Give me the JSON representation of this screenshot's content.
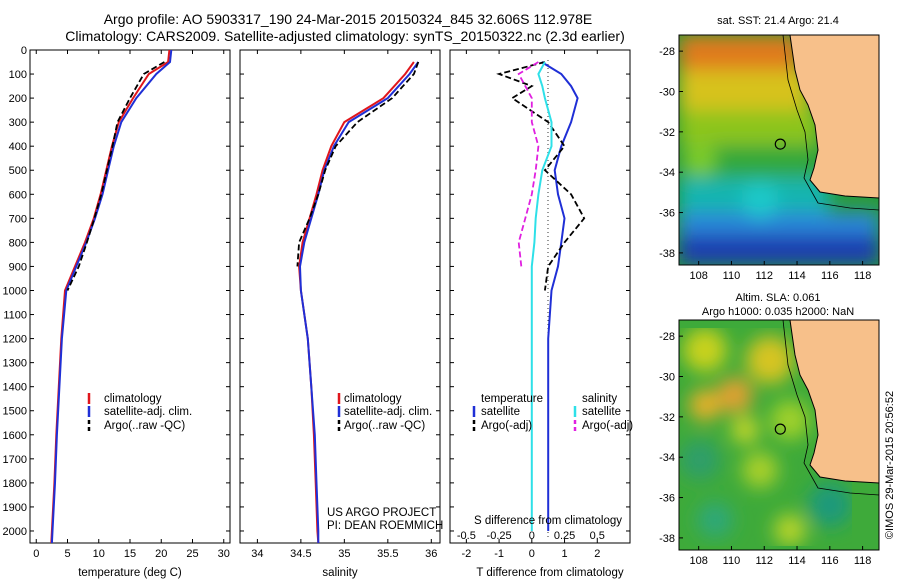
{
  "header": {
    "title_line1": "Argo profile: AO 5903317_190 24-Mar-2015 20150324_845 32.606S 112.978E",
    "title_line2": "Climatology: CARS2009. Satellite-adjusted climatology: synTS_20150322.nc (2.3d earlier)"
  },
  "colors": {
    "climatology": "#e0161c",
    "satellite": "#1f2fd6",
    "argo": "#000000",
    "salinity_satellite": "#2ee0e8",
    "salinity_argo": "#e020e0",
    "land": "#f7c08a"
  },
  "chart_data": [
    {
      "type": "line",
      "panel": "temperature",
      "xlabel": "temperature (deg C)",
      "xlim": [
        -1,
        31
      ],
      "xticks": [
        "0",
        "5",
        "10",
        "15",
        "20",
        "25",
        "30"
      ],
      "ylim": [
        2050,
        0
      ],
      "yticks": [
        "0",
        "100",
        "200",
        "300",
        "400",
        "500",
        "600",
        "700",
        "800",
        "900",
        "1000",
        "1100",
        "1200",
        "1300",
        "1400",
        "1500",
        "1600",
        "1700",
        "1800",
        "1900",
        "2000"
      ],
      "legend": [
        "climatology",
        "satellite-adj. clim.",
        "Argo(..raw -QC)"
      ],
      "depth": [
        0,
        50,
        100,
        200,
        300,
        400,
        500,
        600,
        700,
        800,
        900,
        1000,
        1200,
        1400,
        1600,
        1800,
        2000,
        2050
      ],
      "series": [
        {
          "name": "climatology",
          "values": [
            21.3,
            21.1,
            18.0,
            15.5,
            13.2,
            12.1,
            11.2,
            10.3,
            9.2,
            7.8,
            6.2,
            4.6,
            4.0,
            3.6,
            3.2,
            2.9,
            2.5,
            2.4
          ]
        },
        {
          "name": "satellite-adj. clim.",
          "values": [
            21.6,
            21.4,
            19.2,
            16.0,
            13.6,
            12.4,
            11.5,
            10.6,
            9.4,
            8.0,
            6.4,
            4.8,
            4.1,
            3.7,
            3.3,
            3.0,
            2.6,
            2.5
          ]
        },
        {
          "name": "Argo(..raw -QC)",
          "values": [
            null,
            20.5,
            17.2,
            15.0,
            13.0,
            12.2,
            11.3,
            10.4,
            9.3,
            8.1,
            6.8,
            5.0,
            null,
            null,
            null,
            null,
            null,
            null
          ]
        }
      ]
    },
    {
      "type": "line",
      "panel": "salinity",
      "xlabel": "salinity",
      "xlim": [
        33.8,
        36.1
      ],
      "xticks": [
        "34",
        "34.5",
        "35",
        "35.5",
        "36"
      ],
      "legend": [
        "climatology",
        "satellite-adj. clim.",
        "Argo(..raw -QC)"
      ],
      "annotation": [
        "US ARGO PROJECT",
        "PI: DEAN ROEMMICH"
      ],
      "depth": [
        50,
        100,
        200,
        300,
        400,
        500,
        600,
        700,
        800,
        900,
        1000,
        1200,
        1400,
        1600,
        1800,
        2000,
        2050
      ],
      "series": [
        {
          "name": "climatology",
          "values": [
            35.8,
            35.7,
            35.45,
            35.0,
            34.85,
            34.75,
            34.68,
            34.6,
            34.52,
            34.48,
            34.5,
            34.58,
            34.62,
            34.65,
            34.67,
            34.69,
            34.7
          ]
        },
        {
          "name": "satellite-adj. clim.",
          "values": [
            35.85,
            35.75,
            35.5,
            35.05,
            34.88,
            34.77,
            34.7,
            34.62,
            34.54,
            34.49,
            34.5,
            34.58,
            34.62,
            34.66,
            34.68,
            34.7,
            34.7
          ]
        },
        {
          "name": "Argo(..raw -QC)",
          "values": [
            35.85,
            35.8,
            35.55,
            35.15,
            34.9,
            34.78,
            34.7,
            34.6,
            34.48,
            34.46,
            null,
            null,
            null,
            null,
            null,
            null,
            null
          ]
        }
      ]
    },
    {
      "type": "line",
      "panel": "difference",
      "xlabel": "T difference from climatology",
      "top_axis_label": "S difference from climatology",
      "xlim": [
        -2.5,
        3.0
      ],
      "xticks": [
        "-2",
        "-1",
        "0",
        "1",
        "2"
      ],
      "top_ticks": [
        "-0.5",
        "-0.25",
        "0",
        "0.25",
        "0.5"
      ],
      "legend_headers": [
        "temperature",
        "salinity"
      ],
      "legend": [
        "satellite",
        "Argo(-adj)",
        "satellite",
        "Argo(-adj)"
      ],
      "depth": [
        50,
        100,
        150,
        200,
        300,
        400,
        500,
        600,
        700,
        800,
        900,
        1000,
        1200,
        1400,
        1600,
        1800,
        2000
      ],
      "series": [
        {
          "name": "temperature satellite",
          "values": [
            0.3,
            0.9,
            1.2,
            1.4,
            1.2,
            0.9,
            0.7,
            0.8,
            1.0,
            0.9,
            0.8,
            0.6,
            0.5,
            0.5,
            0.5,
            0.5,
            0.5
          ]
        },
        {
          "name": "temperature Argo(-adj)",
          "values": [
            0.4,
            -1.0,
            0.0,
            -0.6,
            0.5,
            1.0,
            0.4,
            1.2,
            1.6,
            1.0,
            0.5,
            0.4,
            null,
            null,
            null,
            null,
            null
          ]
        },
        {
          "name": "salinity satellite",
          "values": [
            0.1,
            0.05,
            0.08,
            0.1,
            0.15,
            0.15,
            0.08,
            0.05,
            0.03,
            0.02,
            0.0,
            0.0,
            0.0,
            0.0,
            0.0,
            0.0,
            0.0
          ]
        },
        {
          "name": "salinity Argo(-adj)",
          "values": [
            0.05,
            -0.1,
            -0.05,
            0.0,
            0.0,
            0.05,
            0.03,
            0.0,
            -0.05,
            -0.1,
            -0.08,
            null,
            null,
            null,
            null,
            null,
            null
          ]
        }
      ]
    },
    {
      "type": "heatmap",
      "panel": "map-sst",
      "title": "sat. SST: 21.4 Argo: 21.4",
      "xticks": [
        "108",
        "110",
        "112",
        "114",
        "116",
        "118"
      ],
      "yticks": [
        "-28",
        "-30",
        "-32",
        "-34",
        "-36",
        "-38"
      ],
      "xlim": [
        106.8,
        119.0
      ],
      "ylim": [
        -38.6,
        -27.2
      ],
      "marker": {
        "lon": 112.978,
        "lat": -32.606
      }
    },
    {
      "type": "heatmap",
      "panel": "map-sla",
      "title_line1": "Altim. SLA: 0.061",
      "title_line2": "Argo h1000: 0.035 h2000: NaN",
      "xticks": [
        "108",
        "110",
        "112",
        "114",
        "116",
        "118"
      ],
      "yticks": [
        "-28",
        "-30",
        "-32",
        "-34",
        "-36",
        "-38"
      ],
      "xlim": [
        106.8,
        119.0
      ],
      "ylim": [
        -38.6,
        -27.2
      ],
      "marker": {
        "lon": 112.978,
        "lat": -32.606
      }
    }
  ],
  "credit": "©IMOS 29-Mar-2015 20:56:52"
}
